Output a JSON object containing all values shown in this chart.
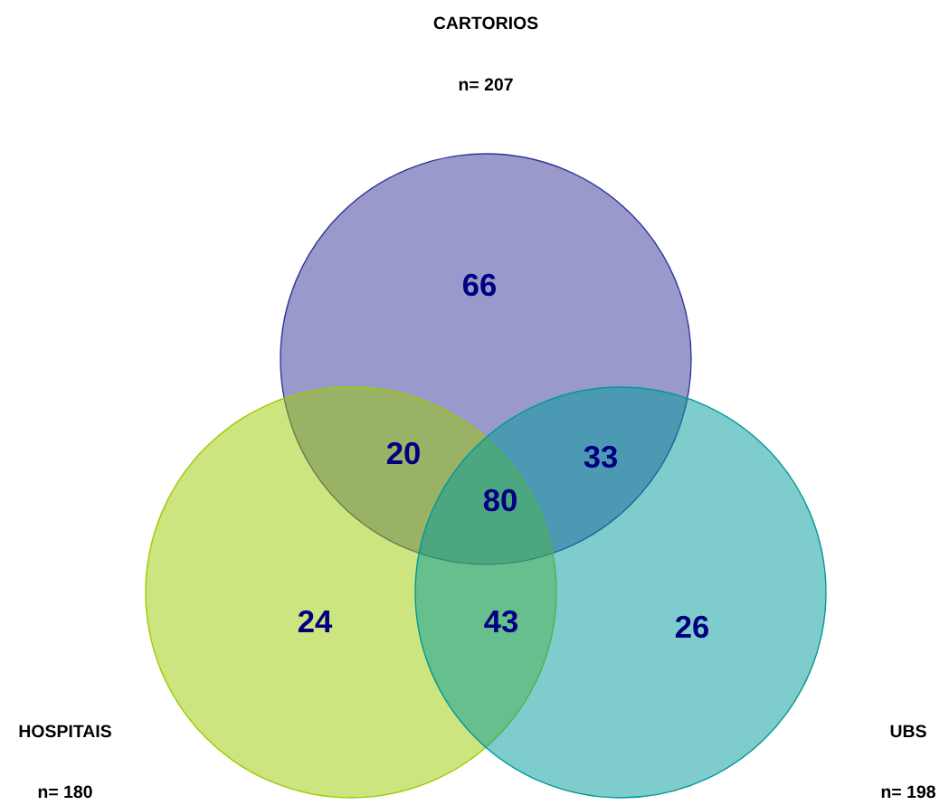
{
  "chart_data": {
    "type": "other",
    "categories": [
      null,
      null,
      null,
      null,
      null,
      null,
      null
    ],
    "values": [
      66,
      20,
      33,
      80,
      24,
      43,
      26
    ],
    "data_labels": true,
    "annotations": [
      "CARTORIOS",
      "n= 207",
      "HOSPITAIS",
      "n= 180",
      "UBS",
      "n= 198"
    ]
  }
}
